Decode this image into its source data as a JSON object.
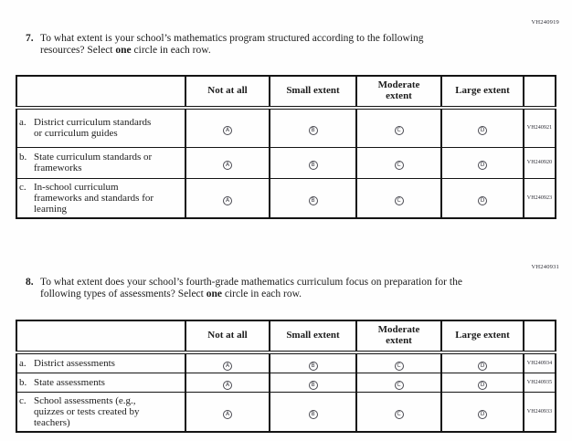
{
  "option_letters": [
    "A",
    "B",
    "C",
    "D"
  ],
  "table_headers": {
    "not_at_all": "Not at all",
    "small_extent": "Small extent",
    "moderate_extent": "Moderate extent",
    "large_extent": "Large extent"
  },
  "questions": [
    {
      "code": "VH240919",
      "number": "7.",
      "text_part1": "To what extent is your school’s mathematics program structured according to the following resources? Select ",
      "text_bold": "one",
      "text_part2": " circle in each row.",
      "rows": [
        {
          "letter": "a.",
          "label": "District curriculum standards or curriculum guides",
          "code": "VH240921"
        },
        {
          "letter": "b.",
          "label": "State curriculum standards or frameworks",
          "code": "VH240920"
        },
        {
          "letter": "c.",
          "label": "In-school curriculum frameworks and standards for learning",
          "code": "VH240923"
        }
      ]
    },
    {
      "code": "VH240931",
      "number": "8.",
      "text_part1": "To what extent does your school’s fourth-grade mathematics curriculum focus on preparation for the following types of assessments? Select ",
      "text_bold": "one",
      "text_part2": " circle in each row.",
      "rows": [
        {
          "letter": "a.",
          "label": "District assessments",
          "code": "VH240934"
        },
        {
          "letter": "b.",
          "label": "State assessments",
          "code": "VH240935"
        },
        {
          "letter": "c.",
          "label": "School assessments (e.g., quizzes or tests created by teachers)",
          "code": "VH240933"
        }
      ]
    }
  ],
  "colors": {
    "text": "#1c1c1c",
    "border": "#141414",
    "background": "#fefefe"
  }
}
